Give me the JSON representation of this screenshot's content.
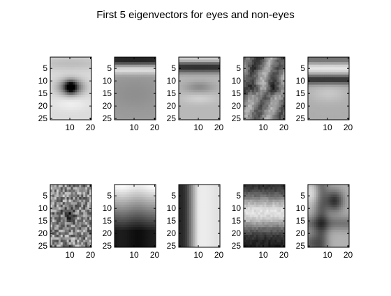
{
  "title": "First 5 eigenvectors for eyes and non-eyes",
  "chart_data": {
    "type": "heatmap",
    "title": "First 5 eigenvectors for eyes and non-eyes",
    "colormap": "gray",
    "grid": false,
    "layout": {
      "rows": 2,
      "cols": 5
    },
    "image_size": {
      "rows": 25,
      "cols": 20
    },
    "xlim": [
      0.5,
      20.5
    ],
    "ylim": [
      0.5,
      25.5
    ],
    "xticks": [
      10,
      20
    ],
    "yticks": [
      5,
      10,
      15,
      20,
      25
    ],
    "panels": [
      {
        "group": "eyes",
        "index": 1,
        "pattern": "eye"
      },
      {
        "group": "eyes",
        "index": 2,
        "pattern": "dark-top-band"
      },
      {
        "group": "eyes",
        "index": 3,
        "pattern": "dark-band-with-eye"
      },
      {
        "group": "eyes",
        "index": 4,
        "pattern": "mottled-dark-eye"
      },
      {
        "group": "eyes",
        "index": 5,
        "pattern": "dark-lid-band"
      },
      {
        "group": "non-eyes",
        "index": 1,
        "pattern": "noise-dark-center"
      },
      {
        "group": "non-eyes",
        "index": 2,
        "pattern": "vertical-gradient-light-top"
      },
      {
        "group": "non-eyes",
        "index": 3,
        "pattern": "dark-left-column"
      },
      {
        "group": "non-eyes",
        "index": 4,
        "pattern": "light-center-band"
      },
      {
        "group": "non-eyes",
        "index": 5,
        "pattern": "dark-cross"
      }
    ]
  }
}
